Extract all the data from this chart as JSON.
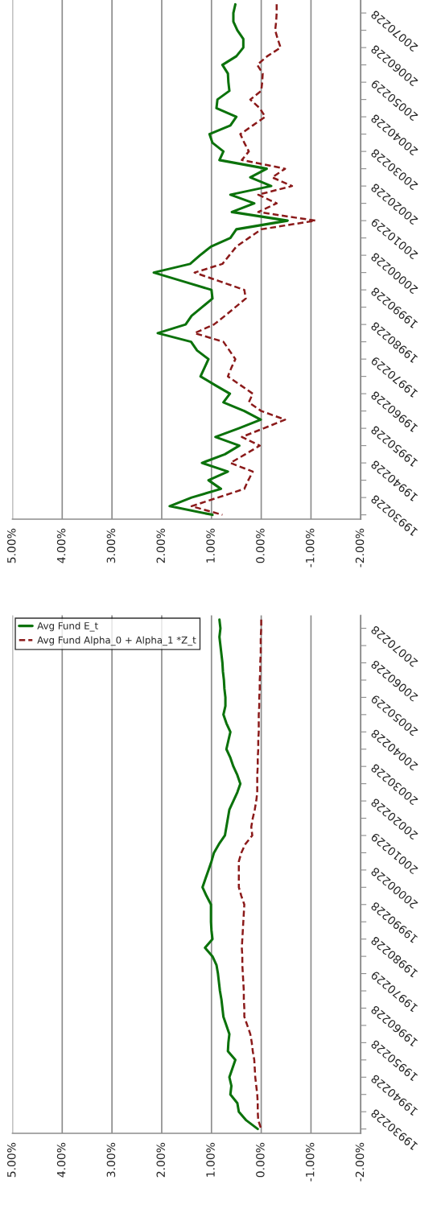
{
  "chart_data": [
    {
      "type": "line",
      "orientation": "horizontal",
      "grid": "x",
      "legend": false,
      "marker": "none",
      "line_style": "solid",
      "categories": [
        null,
        null,
        null,
        "20070228",
        null,
        null,
        null,
        "20060228",
        null,
        null,
        null,
        "20050229",
        null,
        null,
        null,
        "20040228",
        null,
        null,
        null,
        "20030228",
        null,
        null,
        null,
        "20020228",
        null,
        null,
        null,
        "20010229",
        null,
        null,
        null,
        "20000228",
        null,
        null,
        null,
        "19990228",
        null,
        null,
        null,
        "19980228",
        null,
        null,
        null,
        "19970229",
        null,
        null,
        null,
        "19960228",
        null,
        null,
        null,
        "19950228",
        null,
        null,
        null,
        "19940228",
        null,
        null,
        null,
        "19930228"
      ],
      "xlim": [
        5,
        -2
      ],
      "xticks": [
        {
          "value": 5,
          "label": "5.00%"
        },
        {
          "value": 4,
          "label": "4.00%"
        },
        {
          "value": 3,
          "label": "3.00%"
        },
        {
          "value": 2,
          "label": "2.00%"
        },
        {
          "value": 1,
          "label": "1.00%"
        },
        {
          "value": 0,
          "label": "0.00%"
        },
        {
          "value": -1,
          "label": "-1.00%"
        },
        {
          "value": -2,
          "label": "-2.00%"
        }
      ],
      "series": [
        {
          "color": "#0b720b",
          "values": [
            0.52,
            0.56,
            0.56,
            0.48,
            0.36,
            0.36,
            0.5,
            0.78,
            0.67,
            0.66,
            0.64,
            0.88,
            0.9,
            0.5,
            0.62,
            1.04,
            0.98,
            0.76,
            0.84,
            -0.11,
            0.22,
            -0.2,
            0.62,
            0.14,
            0.59,
            -0.53,
            0.5,
            0.62,
            1.01,
            1.23,
            1.43,
            2.16,
            1.58,
            1.0,
            0.98,
            1.19,
            1.4,
            1.52,
            2.08,
            1.41,
            1.29,
            1.06,
            1.14,
            1.22,
            0.93,
            0.63,
            0.76,
            0.34,
            0.01,
            0.45,
            0.92,
            0.44,
            0.73,
            1.19,
            0.67,
            1.06,
            0.81,
            1.4,
            1.84,
            0.98
          ]
        },
        {
          "color": "#8b1a1a",
          "line_style": "dashed",
          "values": [
            -0.31,
            -0.31,
            -0.3,
            -0.28,
            -0.33,
            -0.39,
            -0.12,
            0.08,
            -0.03,
            -0.02,
            0.0,
            0.22,
            0.03,
            -0.08,
            0.17,
            0.42,
            0.34,
            0.25,
            0.39,
            -0.48,
            -0.22,
            -0.62,
            0.06,
            -0.31,
            0.06,
            -1.09,
            0.0,
            0.25,
            0.5,
            0.64,
            0.78,
            1.34,
            0.84,
            0.34,
            0.31,
            0.52,
            0.73,
            0.95,
            1.34,
            0.76,
            0.64,
            0.52,
            0.6,
            0.67,
            0.42,
            0.17,
            0.25,
            0.0,
            -0.48,
            -0.05,
            0.39,
            0.03,
            0.32,
            0.62,
            0.17,
            0.26,
            0.34,
            0.87,
            1.4,
            0.78
          ]
        }
      ]
    },
    {
      "type": "line",
      "orientation": "horizontal",
      "grid": "x",
      "legend": "top left",
      "marker": "none",
      "line_style": "solid",
      "categories": [
        null,
        null,
        null,
        "20070228",
        null,
        null,
        null,
        "20060228",
        null,
        null,
        null,
        "20050229",
        null,
        null,
        null,
        "20040228",
        null,
        null,
        null,
        "20030228",
        null,
        null,
        null,
        "20020228",
        null,
        null,
        null,
        "20010229",
        null,
        null,
        null,
        "20000228",
        null,
        null,
        null,
        "19990228",
        null,
        null,
        null,
        "19980228",
        null,
        null,
        null,
        "19970229",
        null,
        null,
        null,
        "19960228",
        null,
        null,
        null,
        "19950228",
        null,
        null,
        null,
        "19940228",
        null,
        null,
        null,
        "19930228"
      ],
      "xlim": [
        5,
        -2
      ],
      "xticks": [
        {
          "value": 5,
          "label": "5.00%"
        },
        {
          "value": 4,
          "label": "4.00%"
        },
        {
          "value": 3,
          "label": "3.00%"
        },
        {
          "value": 2,
          "label": "2.00%"
        },
        {
          "value": 1,
          "label": "1.00%"
        },
        {
          "value": 0,
          "label": "0.00%"
        },
        {
          "value": -1,
          "label": "-1.00%"
        },
        {
          "value": -2,
          "label": "-2.00%"
        }
      ],
      "series": [
        {
          "name": "Avg Fund E_t",
          "color": "#0b720b",
          "values": [
            0.84,
            0.82,
            0.84,
            0.82,
            0.8,
            0.78,
            0.77,
            0.75,
            0.74,
            0.72,
            0.72,
            0.76,
            0.7,
            0.62,
            0.66,
            0.7,
            0.62,
            0.56,
            0.48,
            0.42,
            0.48,
            0.56,
            0.64,
            0.67,
            0.7,
            0.73,
            0.85,
            0.95,
            1.0,
            1.06,
            1.12,
            1.18,
            1.1,
            1.01,
            1.01,
            1.01,
            1.0,
            0.98,
            1.13,
            0.98,
            0.9,
            0.87,
            0.85,
            0.83,
            0.8,
            0.78,
            0.76,
            0.7,
            0.64,
            0.66,
            0.67,
            0.52,
            0.58,
            0.64,
            0.6,
            0.62,
            0.48,
            0.45,
            0.3,
            0.07
          ]
        },
        {
          "name": "Avg Fund Alpha_0 + Alpha_1 *Z_t",
          "color": "#8b1a1a",
          "line_style": "dashed",
          "values": [
            0.0,
            0.0,
            0.01,
            0.01,
            0.01,
            0.02,
            0.02,
            0.03,
            0.03,
            0.04,
            0.04,
            0.05,
            0.05,
            0.05,
            0.06,
            0.06,
            0.07,
            0.07,
            0.08,
            0.08,
            0.08,
            0.1,
            0.13,
            0.17,
            0.2,
            0.18,
            0.32,
            0.4,
            0.45,
            0.45,
            0.45,
            0.45,
            0.4,
            0.34,
            0.35,
            0.36,
            0.37,
            0.38,
            0.39,
            0.38,
            0.38,
            0.37,
            0.36,
            0.35,
            0.35,
            0.34,
            0.34,
            0.28,
            0.22,
            0.19,
            0.17,
            0.14,
            0.13,
            0.12,
            0.1,
            0.08,
            0.07,
            0.07,
            0.06,
            0.0
          ]
        }
      ]
    }
  ]
}
